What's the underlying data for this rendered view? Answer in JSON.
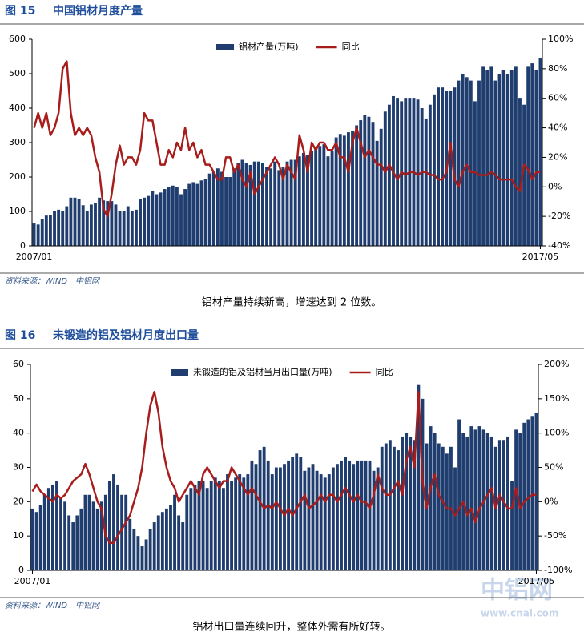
{
  "chart_data": [
    {
      "type": "bar_line",
      "title": "中国铝材月度产量",
      "categories": [
        "2007/01",
        null,
        null,
        null,
        null,
        null,
        null,
        null,
        null,
        null,
        null,
        null,
        null,
        null,
        null,
        null,
        null,
        null,
        null,
        null,
        null,
        null,
        null,
        null,
        null,
        null,
        null,
        null,
        null,
        null,
        null,
        null,
        null,
        null,
        null,
        null,
        null,
        null,
        null,
        null,
        null,
        null,
        null,
        null,
        null,
        null,
        null,
        null,
        null,
        null,
        null,
        null,
        null,
        null,
        null,
        null,
        null,
        null,
        null,
        null,
        null,
        null,
        null,
        null,
        null,
        null,
        null,
        null,
        null,
        null,
        null,
        null,
        null,
        null,
        null,
        null,
        null,
        null,
        null,
        null,
        null,
        null,
        null,
        null,
        null,
        null,
        null,
        null,
        null,
        null,
        null,
        null,
        null,
        null,
        null,
        null,
        null,
        null,
        null,
        null,
        null,
        null,
        null,
        null,
        null,
        null,
        null,
        null,
        null,
        null,
        null,
        null,
        null,
        null,
        null,
        null,
        null,
        null,
        null,
        null,
        null,
        null,
        null,
        null,
        "2017/05"
      ],
      "series": [
        {
          "name": "铝材产量(万吨)",
          "color": "#1f3d6e",
          "values": [
            65,
            62,
            78,
            88,
            90,
            100,
            105,
            100,
            115,
            140,
            140,
            135,
            118,
            100,
            120,
            125,
            140,
            132,
            130,
            130,
            120,
            100,
            100,
            115,
            100,
            105,
            135,
            140,
            145,
            160,
            150,
            155,
            165,
            170,
            175,
            170,
            150,
            165,
            180,
            185,
            180,
            190,
            195,
            210,
            215,
            225,
            215,
            200,
            200,
            225,
            240,
            250,
            240,
            235,
            245,
            245,
            240,
            230,
            225,
            245,
            220,
            230,
            245,
            250,
            250,
            260,
            270,
            265,
            275,
            285,
            290,
            295,
            260,
            275,
            315,
            325,
            320,
            330,
            335,
            350,
            365,
            380,
            375,
            360,
            305,
            340,
            390,
            410,
            435,
            430,
            420,
            430,
            430,
            430,
            425,
            400,
            370,
            410,
            440,
            460,
            460,
            450,
            450,
            460,
            480,
            500,
            490,
            480,
            420,
            480,
            520,
            510,
            520,
            480,
            500,
            510,
            500,
            510,
            520,
            430,
            410,
            520,
            530,
            510,
            545
          ]
        },
        {
          "name": "同比",
          "color": "#a81c1c",
          "axis": "y2",
          "values": [
            40,
            50,
            40,
            50,
            35,
            40,
            50,
            80,
            85,
            50,
            35,
            40,
            35,
            40,
            35,
            20,
            10,
            -15,
            -20,
            -5,
            15,
            28,
            15,
            20,
            20,
            15,
            25,
            50,
            45,
            45,
            30,
            15,
            15,
            25,
            20,
            30,
            25,
            40,
            25,
            30,
            20,
            25,
            15,
            15,
            10,
            5,
            5,
            20,
            20,
            10,
            15,
            5,
            0,
            10,
            -5,
            0,
            5,
            10,
            15,
            20,
            15,
            5,
            15,
            10,
            5,
            35,
            25,
            10,
            30,
            25,
            30,
            30,
            25,
            25,
            30,
            20,
            20,
            10,
            30,
            40,
            30,
            20,
            25,
            20,
            15,
            15,
            10,
            15,
            10,
            5,
            10,
            8,
            10,
            10,
            8,
            10,
            10,
            8,
            8,
            5,
            5,
            10,
            30,
            5,
            0,
            10,
            15,
            10,
            10,
            8,
            8,
            8,
            10,
            8,
            5,
            5,
            5,
            5,
            0,
            -3,
            15,
            12,
            5,
            10,
            10
          ]
        }
      ],
      "ylim": [
        0,
        600
      ],
      "yticks": [
        0,
        100,
        200,
        300,
        400,
        500,
        600
      ],
      "y2lim": [
        -40,
        100
      ],
      "y2ticks": [
        {
          "value": -40,
          "label": "-40%"
        },
        {
          "value": -20,
          "label": "-20%"
        },
        {
          "value": 0,
          "label": "0%"
        },
        {
          "value": 20,
          "label": "20%"
        },
        {
          "value": 40,
          "label": "40%"
        },
        {
          "value": 60,
          "label": "60%"
        },
        {
          "value": 80,
          "label": "80%"
        },
        {
          "value": 100,
          "label": "100%"
        }
      ],
      "grid": false,
      "legend": "top"
    },
    {
      "type": "bar_line",
      "title": "未锻造的铝及铝材月度出口量",
      "categories": [
        "2007/01",
        null,
        null,
        null,
        null,
        null,
        null,
        null,
        null,
        null,
        null,
        null,
        null,
        null,
        null,
        null,
        null,
        null,
        null,
        null,
        null,
        null,
        null,
        null,
        null,
        null,
        null,
        null,
        null,
        null,
        null,
        null,
        null,
        null,
        null,
        null,
        null,
        null,
        null,
        null,
        null,
        null,
        null,
        null,
        null,
        null,
        null,
        null,
        null,
        null,
        null,
        null,
        null,
        null,
        null,
        null,
        null,
        null,
        null,
        null,
        null,
        null,
        null,
        null,
        null,
        null,
        null,
        null,
        null,
        null,
        null,
        null,
        null,
        null,
        null,
        null,
        null,
        null,
        null,
        null,
        null,
        null,
        null,
        null,
        null,
        null,
        null,
        null,
        null,
        null,
        null,
        null,
        null,
        null,
        null,
        null,
        null,
        null,
        null,
        null,
        null,
        null,
        null,
        null,
        null,
        null,
        null,
        null,
        null,
        null,
        null,
        null,
        null,
        null,
        null,
        null,
        null,
        null,
        null,
        null,
        null,
        null,
        null,
        null,
        "2017/05"
      ],
      "series": [
        {
          "name": "未锻造的铝及铝材当月出口量(万吨)",
          "color": "#1f3d6e",
          "values": [
            18,
            17,
            19,
            22,
            24,
            25,
            26,
            21,
            20,
            16,
            14,
            16,
            18,
            22,
            22,
            20,
            18,
            20,
            22,
            26,
            28,
            25,
            22,
            22,
            15,
            12,
            10,
            7,
            9,
            12,
            14,
            16,
            17,
            18,
            19,
            22,
            16,
            14,
            22,
            24,
            25,
            26,
            26,
            24,
            26,
            27,
            26,
            24,
            28,
            26,
            27,
            28,
            27,
            28,
            32,
            31,
            35,
            36,
            32,
            28,
            30,
            30,
            31,
            32,
            33,
            34,
            33,
            29,
            30,
            31,
            29,
            28,
            27,
            28,
            30,
            31,
            32,
            33,
            32,
            31,
            32,
            32,
            32,
            32,
            29,
            30,
            36,
            37,
            38,
            36,
            35,
            39,
            40,
            39,
            38,
            54,
            50,
            37,
            42,
            40,
            37,
            36,
            34,
            36,
            30,
            44,
            40,
            39,
            42,
            41,
            42,
            41,
            40,
            39,
            36,
            38,
            38,
            39,
            26,
            41,
            40,
            43,
            44,
            45,
            46
          ]
        },
        {
          "name": "同比",
          "color": "#a81c1c",
          "axis": "y2",
          "values": [
            15,
            25,
            15,
            10,
            5,
            0,
            10,
            5,
            10,
            20,
            30,
            35,
            40,
            55,
            40,
            20,
            0,
            -10,
            -50,
            -60,
            -60,
            -50,
            -40,
            -30,
            -20,
            0,
            20,
            50,
            100,
            140,
            160,
            130,
            80,
            50,
            30,
            20,
            0,
            10,
            20,
            30,
            20,
            10,
            40,
            50,
            40,
            30,
            20,
            30,
            30,
            50,
            40,
            30,
            20,
            10,
            20,
            10,
            0,
            -10,
            -5,
            -10,
            0,
            -10,
            -20,
            -10,
            -20,
            -10,
            0,
            10,
            -10,
            -5,
            0,
            10,
            0,
            10,
            10,
            0,
            10,
            20,
            10,
            0,
            10,
            0,
            0,
            -10,
            10,
            40,
            20,
            10,
            10,
            20,
            30,
            10,
            60,
            80,
            50,
            160,
            30,
            -10,
            20,
            40,
            10,
            0,
            -10,
            -10,
            -20,
            -10,
            0,
            -20,
            -10,
            -30,
            -10,
            0,
            10,
            20,
            -10,
            10,
            0,
            -10,
            -10,
            20,
            -10,
            0,
            5,
            10,
            10
          ]
        }
      ],
      "ylim": [
        0,
        60
      ],
      "yticks": [
        0,
        10,
        20,
        30,
        40,
        50,
        60
      ],
      "y2lim": [
        -100,
        200
      ],
      "y2ticks": [
        {
          "value": -100,
          "label": "-100%"
        },
        {
          "value": -50,
          "label": "-50%"
        },
        {
          "value": 0,
          "label": "0%"
        },
        {
          "value": 50,
          "label": "50%"
        },
        {
          "value": 100,
          "label": "100%"
        },
        {
          "value": 150,
          "label": "150%"
        },
        {
          "value": 200,
          "label": "200%"
        }
      ],
      "grid": false,
      "legend": "top"
    }
  ],
  "figures": [
    {
      "number": "图 15",
      "source": "资料来源：WIND　中铝网",
      "caption": "铝材产量持续新高，增速达到 2 位数。"
    },
    {
      "number": "图 16",
      "source": "资料来源：WIND　中铝网",
      "caption": "铝材出口量连续回升，整体外需有所好转。"
    }
  ],
  "watermark": {
    "logo": "中铝网",
    "url": "www.cnal.com"
  }
}
